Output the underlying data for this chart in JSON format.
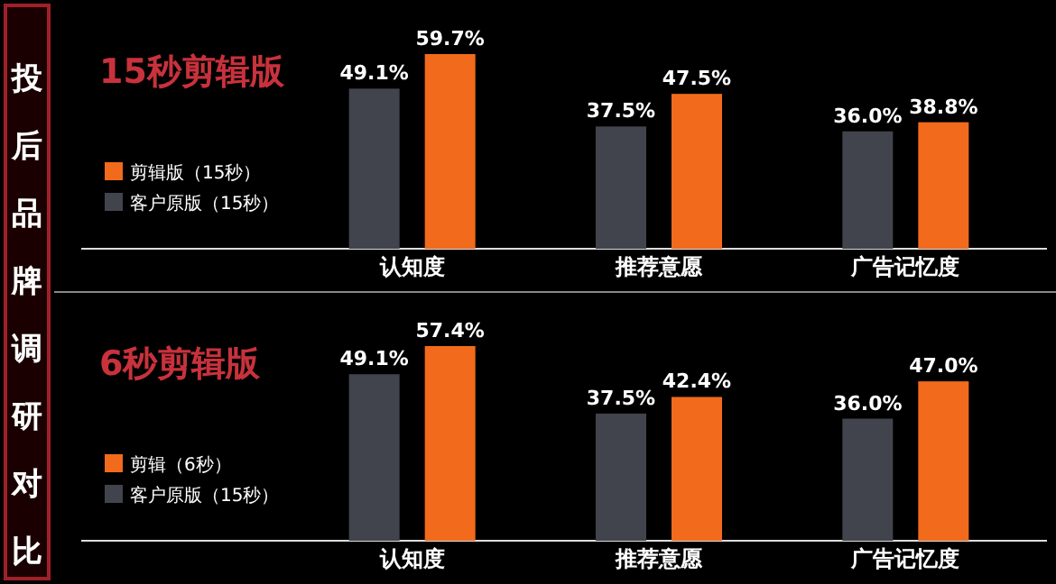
{
  "chart_data": [
    {
      "type": "bar",
      "title": "15秒剪辑版",
      "annotations": [
        "投后品牌调研对比"
      ],
      "categories": [
        "认知度",
        "推荐意愿",
        "广告记忆度"
      ],
      "data_labels": true,
      "legend": "bottom left",
      "series": [
        {
          "name": "客户原版（15秒）",
          "color": "#41444c",
          "values": [
            49.1,
            37.5,
            36.0
          ],
          "value_labels": [
            "49.1%",
            "37.5%",
            "36.0%"
          ]
        },
        {
          "name": "剪辑版（15秒）",
          "color": "#f26a1b",
          "values": [
            59.7,
            47.5,
            38.8
          ],
          "value_labels": [
            "59.7%",
            "47.5%",
            "38.8%"
          ]
        }
      ]
    },
    {
      "type": "bar",
      "title": "6秒剪辑版",
      "categories": [
        "认知度",
        "推荐意愿",
        "广告记忆度"
      ],
      "data_labels": true,
      "legend": "bottom left",
      "series": [
        {
          "name": "客户原版（15秒）",
          "color": "#41444c",
          "values": [
            49.1,
            37.5,
            36.0
          ],
          "value_labels": [
            "49.1%",
            "37.5%",
            "36.0%"
          ]
        },
        {
          "name": "剪辑（6秒）",
          "color": "#f26a1b",
          "values": [
            57.4,
            42.4,
            47.0
          ],
          "value_labels": [
            "57.4%",
            "42.4%",
            "47.0%"
          ]
        }
      ]
    }
  ]
}
